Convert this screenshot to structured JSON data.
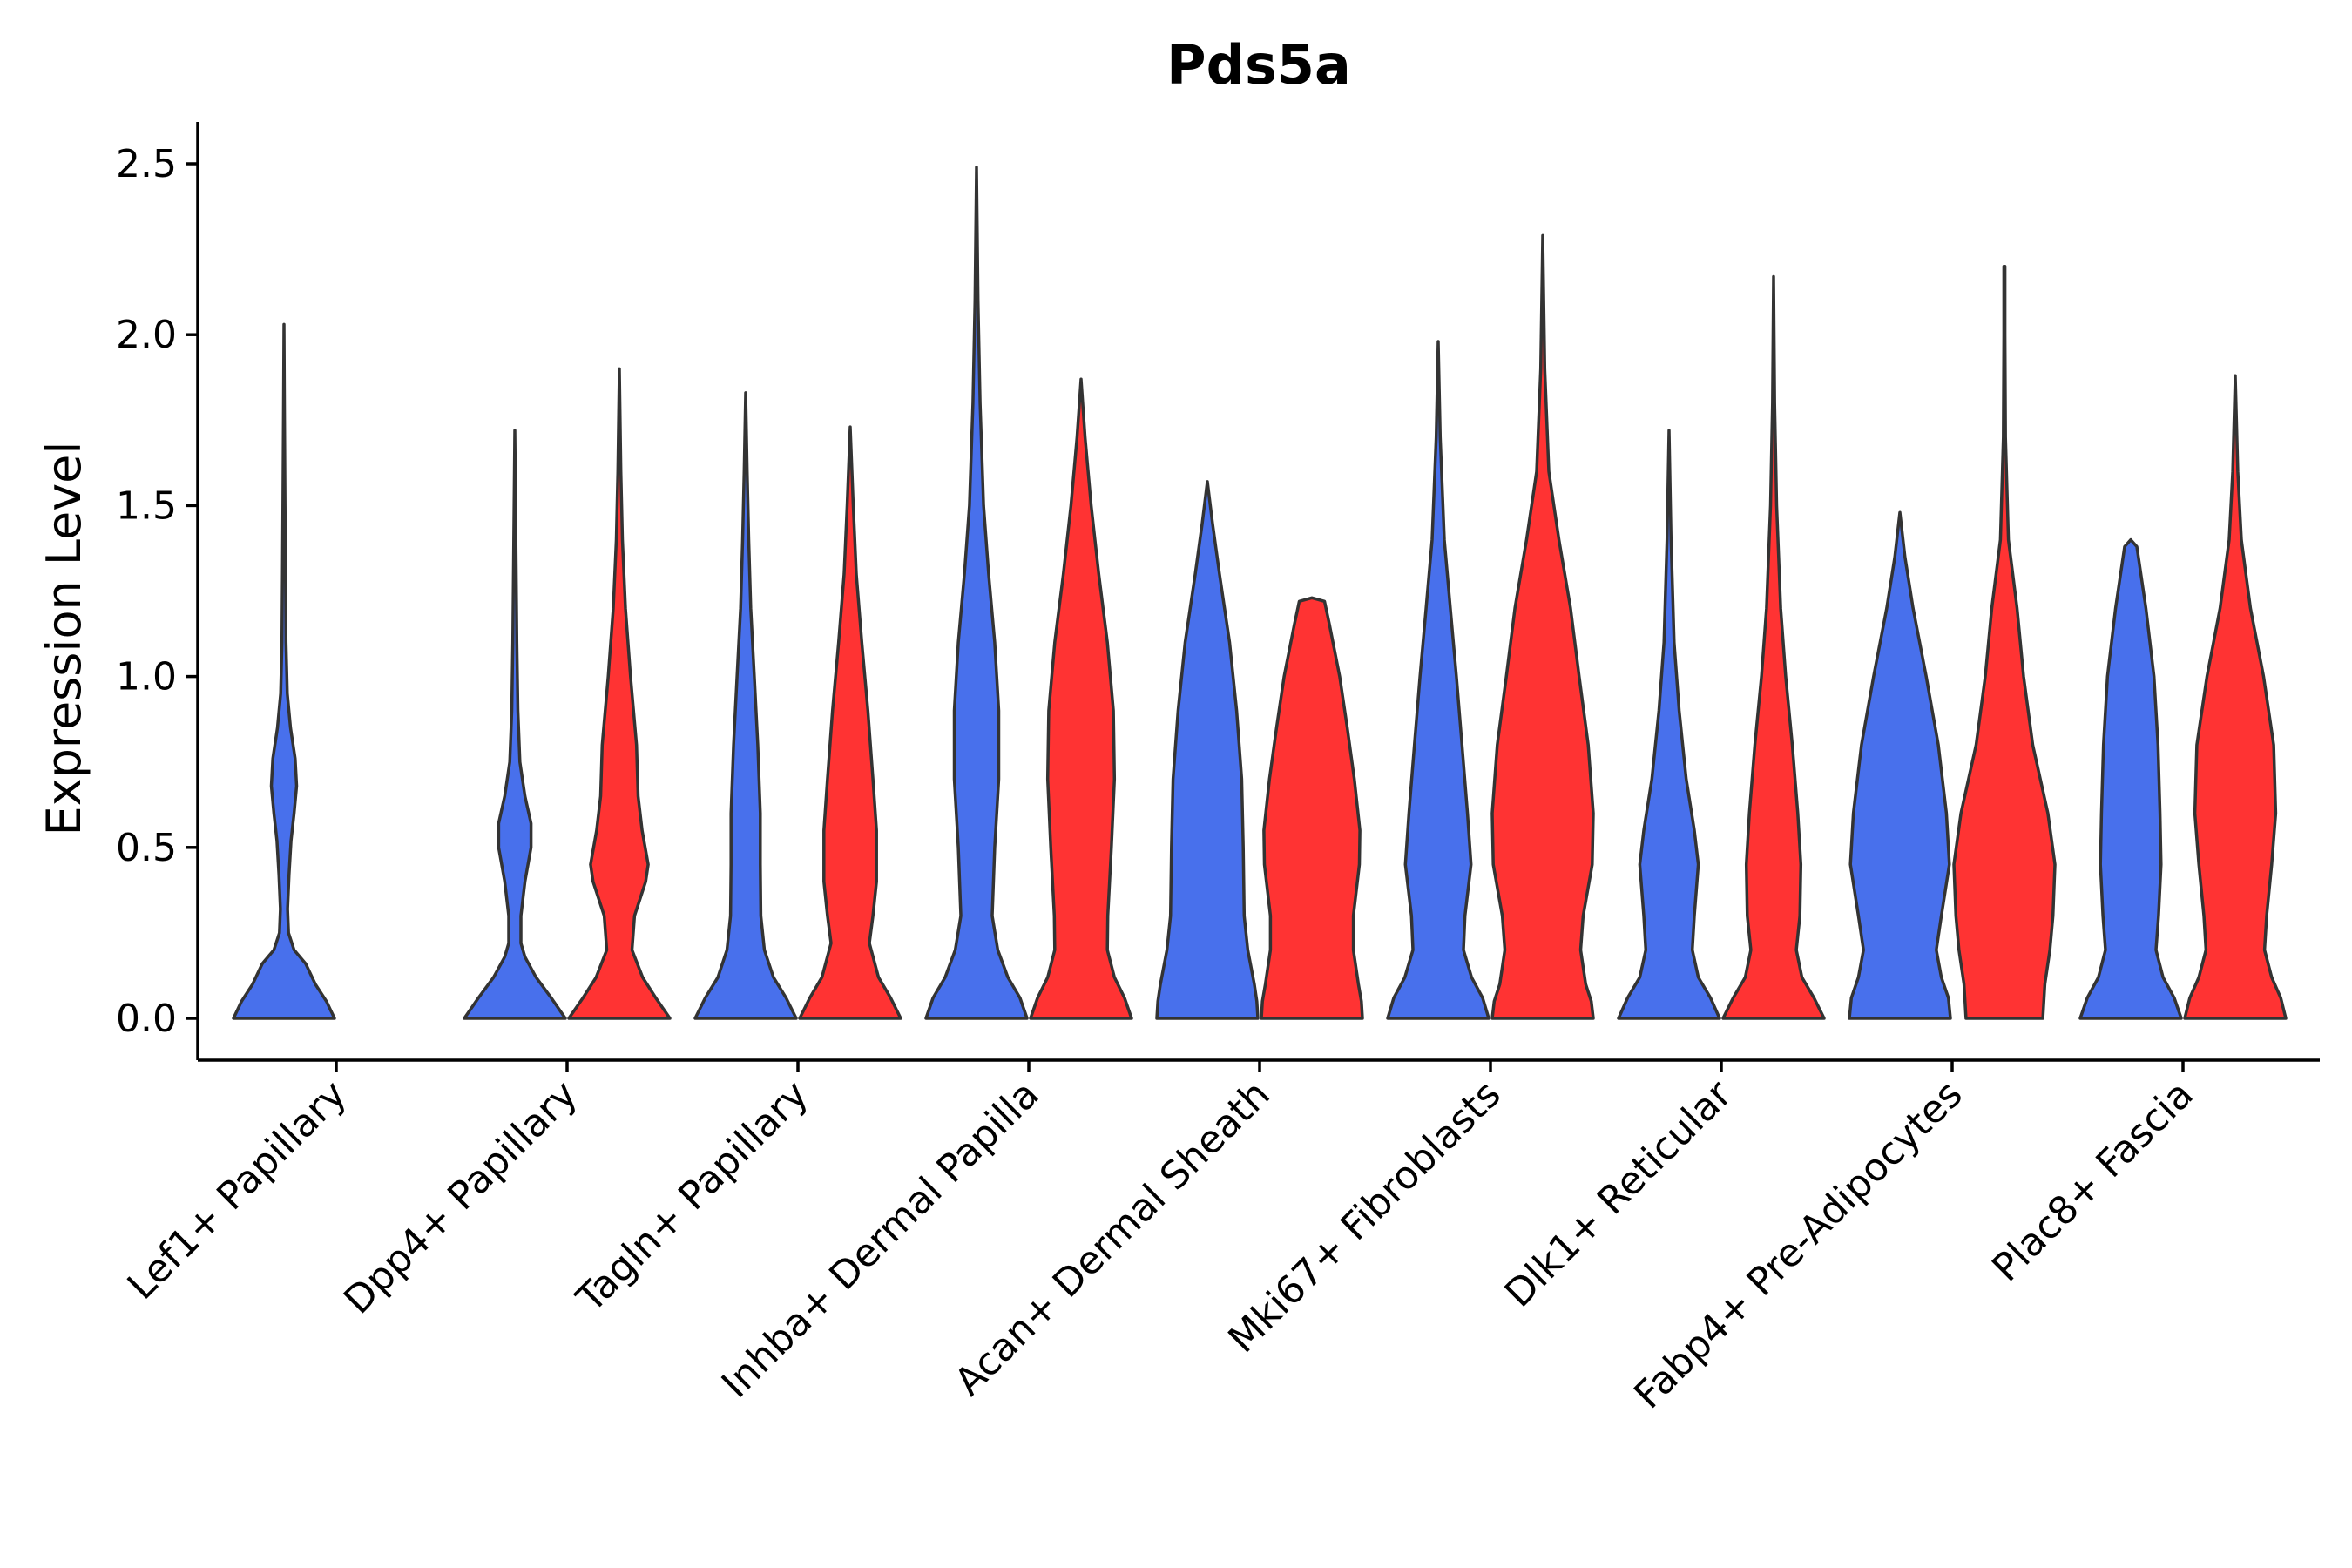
{
  "chart_data": {
    "type": "violin",
    "title": "Pds5a",
    "xlabel": "",
    "ylabel": "Expression Level",
    "ylim": [
      -0.12,
      2.6
    ],
    "yticks": [
      0.0,
      0.5,
      1.0,
      1.5,
      2.0,
      2.5
    ],
    "ytick_labels": [
      "0.0",
      "0.5",
      "1.0",
      "1.5",
      "2.0",
      "2.5"
    ],
    "legend": "none",
    "colors": {
      "group1": "#4870EC",
      "group2": "#FF3333",
      "outline": "#333333",
      "axis": "#000000"
    },
    "categories": [
      "Lef1+ Papillary",
      "Dpp4+ Papillary",
      "Tagln+ Papillary",
      "Inhba+ Dermal Papilla",
      "Acan+ Dermal Sheath",
      "Mki67+ Fibroblasts",
      "Dlk1+ Reticular",
      "Fabp4+ Pre-Adipocytes",
      "Plac8+ Fascia"
    ],
    "violins": [
      {
        "category": "Lef1+ Papillary",
        "group": "group1",
        "shape": [
          [
            0,
            1.0
          ],
          [
            0.05,
            0.84
          ],
          [
            0.1,
            0.62
          ],
          [
            0.16,
            0.43
          ],
          [
            0.2,
            0.2
          ],
          [
            0.25,
            0.09
          ],
          [
            0.32,
            0.07
          ],
          [
            0.42,
            0.1
          ],
          [
            0.52,
            0.14
          ],
          [
            0.6,
            0.2
          ],
          [
            0.68,
            0.25
          ],
          [
            0.76,
            0.22
          ],
          [
            0.85,
            0.13
          ],
          [
            0.95,
            0.065
          ],
          [
            1.1,
            0.04
          ],
          [
            1.3,
            0.03
          ],
          [
            1.5,
            0.02
          ],
          [
            1.75,
            0.01
          ],
          [
            2.03,
            0.0
          ]
        ]
      },
      {
        "category": "Dpp4+ Papillary",
        "group": "group1",
        "shape": [
          [
            0,
            1.0
          ],
          [
            0.06,
            0.72
          ],
          [
            0.12,
            0.42
          ],
          [
            0.18,
            0.2
          ],
          [
            0.22,
            0.12
          ],
          [
            0.3,
            0.12
          ],
          [
            0.4,
            0.2
          ],
          [
            0.5,
            0.32
          ],
          [
            0.57,
            0.32
          ],
          [
            0.65,
            0.2
          ],
          [
            0.75,
            0.1
          ],
          [
            0.9,
            0.06
          ],
          [
            1.1,
            0.04
          ],
          [
            1.4,
            0.02
          ],
          [
            1.72,
            0.0
          ]
        ]
      },
      {
        "category": "Dpp4+ Papillary",
        "group": "group2",
        "shape": [
          [
            0,
            1.0
          ],
          [
            0.06,
            0.72
          ],
          [
            0.12,
            0.46
          ],
          [
            0.2,
            0.25
          ],
          [
            0.3,
            0.3
          ],
          [
            0.4,
            0.52
          ],
          [
            0.45,
            0.57
          ],
          [
            0.55,
            0.45
          ],
          [
            0.65,
            0.37
          ],
          [
            0.8,
            0.34
          ],
          [
            1.0,
            0.22
          ],
          [
            1.2,
            0.12
          ],
          [
            1.4,
            0.06
          ],
          [
            1.6,
            0.03
          ],
          [
            1.9,
            0.0
          ]
        ]
      },
      {
        "category": "Tagln+ Papillary",
        "group": "group1",
        "shape": [
          [
            0,
            1.0
          ],
          [
            0.06,
            0.8
          ],
          [
            0.12,
            0.55
          ],
          [
            0.2,
            0.37
          ],
          [
            0.3,
            0.3
          ],
          [
            0.45,
            0.29
          ],
          [
            0.6,
            0.29
          ],
          [
            0.8,
            0.24
          ],
          [
            1.0,
            0.17
          ],
          [
            1.2,
            0.1
          ],
          [
            1.4,
            0.06
          ],
          [
            1.6,
            0.03
          ],
          [
            1.83,
            0.0
          ]
        ]
      },
      {
        "category": "Tagln+ Papillary",
        "group": "group2",
        "shape": [
          [
            0,
            1.0
          ],
          [
            0.06,
            0.8
          ],
          [
            0.12,
            0.56
          ],
          [
            0.22,
            0.38
          ],
          [
            0.3,
            0.45
          ],
          [
            0.4,
            0.52
          ],
          [
            0.55,
            0.52
          ],
          [
            0.7,
            0.45
          ],
          [
            0.9,
            0.35
          ],
          [
            1.1,
            0.23
          ],
          [
            1.3,
            0.12
          ],
          [
            1.5,
            0.06
          ],
          [
            1.73,
            0.0
          ]
        ]
      },
      {
        "category": "Inhba+ Dermal Papilla",
        "group": "group1",
        "shape": [
          [
            0,
            1.0
          ],
          [
            0.06,
            0.86
          ],
          [
            0.12,
            0.62
          ],
          [
            0.2,
            0.42
          ],
          [
            0.3,
            0.31
          ],
          [
            0.5,
            0.36
          ],
          [
            0.7,
            0.44
          ],
          [
            0.9,
            0.44
          ],
          [
            1.1,
            0.36
          ],
          [
            1.3,
            0.24
          ],
          [
            1.5,
            0.14
          ],
          [
            1.8,
            0.07
          ],
          [
            2.1,
            0.03
          ],
          [
            2.49,
            0.0
          ]
        ]
      },
      {
        "category": "Inhba+ Dermal Papilla",
        "group": "group2",
        "shape": [
          [
            0,
            1.0
          ],
          [
            0.06,
            0.86
          ],
          [
            0.12,
            0.66
          ],
          [
            0.2,
            0.52
          ],
          [
            0.3,
            0.53
          ],
          [
            0.5,
            0.6
          ],
          [
            0.7,
            0.66
          ],
          [
            0.9,
            0.64
          ],
          [
            1.1,
            0.52
          ],
          [
            1.3,
            0.35
          ],
          [
            1.5,
            0.2
          ],
          [
            1.7,
            0.08
          ],
          [
            1.87,
            0.0
          ]
        ]
      },
      {
        "category": "Acan+ Dermal Sheath",
        "group": "group1",
        "shape": [
          [
            0,
            1.0
          ],
          [
            0.05,
            0.98
          ],
          [
            0.1,
            0.93
          ],
          [
            0.2,
            0.8
          ],
          [
            0.3,
            0.73
          ],
          [
            0.5,
            0.71
          ],
          [
            0.7,
            0.68
          ],
          [
            0.9,
            0.58
          ],
          [
            1.1,
            0.44
          ],
          [
            1.3,
            0.24
          ],
          [
            1.45,
            0.1
          ],
          [
            1.57,
            0.0
          ]
        ]
      },
      {
        "category": "Acan+ Dermal Sheath",
        "group": "group2",
        "shape": [
          [
            0,
            1.0
          ],
          [
            0.05,
            0.98
          ],
          [
            0.1,
            0.92
          ],
          [
            0.2,
            0.82
          ],
          [
            0.3,
            0.82
          ],
          [
            0.45,
            0.94
          ],
          [
            0.55,
            0.95
          ],
          [
            0.7,
            0.84
          ],
          [
            0.85,
            0.7
          ],
          [
            1.0,
            0.55
          ],
          [
            1.15,
            0.35
          ],
          [
            1.22,
            0.25
          ],
          [
            1.23,
            0.0
          ]
        ]
      },
      {
        "category": "Mki67+ Fibroblasts",
        "group": "group1",
        "shape": [
          [
            0,
            1.0
          ],
          [
            0.06,
            0.88
          ],
          [
            0.12,
            0.66
          ],
          [
            0.2,
            0.5
          ],
          [
            0.3,
            0.53
          ],
          [
            0.45,
            0.65
          ],
          [
            0.6,
            0.58
          ],
          [
            0.8,
            0.47
          ],
          [
            1.0,
            0.36
          ],
          [
            1.2,
            0.24
          ],
          [
            1.4,
            0.12
          ],
          [
            1.7,
            0.04
          ],
          [
            1.98,
            0.0
          ]
        ]
      },
      {
        "category": "Mki67+ Fibroblasts",
        "group": "group2",
        "shape": [
          [
            0,
            1.0
          ],
          [
            0.05,
            0.96
          ],
          [
            0.1,
            0.85
          ],
          [
            0.2,
            0.75
          ],
          [
            0.3,
            0.8
          ],
          [
            0.45,
            0.98
          ],
          [
            0.6,
            1.0
          ],
          [
            0.8,
            0.9
          ],
          [
            1.0,
            0.72
          ],
          [
            1.2,
            0.55
          ],
          [
            1.4,
            0.32
          ],
          [
            1.6,
            0.12
          ],
          [
            1.9,
            0.04
          ],
          [
            2.29,
            0.0
          ]
        ]
      },
      {
        "category": "Dlk1+ Reticular",
        "group": "group1",
        "shape": [
          [
            0,
            1.0
          ],
          [
            0.06,
            0.82
          ],
          [
            0.12,
            0.58
          ],
          [
            0.2,
            0.46
          ],
          [
            0.3,
            0.5
          ],
          [
            0.45,
            0.58
          ],
          [
            0.55,
            0.5
          ],
          [
            0.7,
            0.34
          ],
          [
            0.9,
            0.2
          ],
          [
            1.1,
            0.1
          ],
          [
            1.4,
            0.04
          ],
          [
            1.72,
            0.0
          ]
        ]
      },
      {
        "category": "Dlk1+ Reticular",
        "group": "group2",
        "shape": [
          [
            0,
            1.0
          ],
          [
            0.06,
            0.8
          ],
          [
            0.12,
            0.56
          ],
          [
            0.2,
            0.45
          ],
          [
            0.3,
            0.52
          ],
          [
            0.45,
            0.54
          ],
          [
            0.6,
            0.48
          ],
          [
            0.8,
            0.37
          ],
          [
            1.0,
            0.24
          ],
          [
            1.2,
            0.14
          ],
          [
            1.5,
            0.06
          ],
          [
            1.8,
            0.02
          ],
          [
            2.17,
            0.0
          ]
        ]
      },
      {
        "category": "Fabp4+ Pre-Adipocytes",
        "group": "group1",
        "shape": [
          [
            0,
            1.0
          ],
          [
            0.06,
            0.96
          ],
          [
            0.12,
            0.82
          ],
          [
            0.2,
            0.72
          ],
          [
            0.3,
            0.82
          ],
          [
            0.45,
            0.98
          ],
          [
            0.6,
            0.92
          ],
          [
            0.8,
            0.76
          ],
          [
            1.0,
            0.52
          ],
          [
            1.2,
            0.26
          ],
          [
            1.35,
            0.1
          ],
          [
            1.48,
            0.0
          ]
        ]
      },
      {
        "category": "Fabp4+ Pre-Adipocytes",
        "group": "group2",
        "shape": [
          [
            0,
            0.76
          ],
          [
            0.1,
            0.8
          ],
          [
            0.2,
            0.9
          ],
          [
            0.3,
            0.96
          ],
          [
            0.45,
            1.0
          ],
          [
            0.6,
            0.86
          ],
          [
            0.8,
            0.56
          ],
          [
            1.0,
            0.38
          ],
          [
            1.2,
            0.25
          ],
          [
            1.4,
            0.08
          ],
          [
            1.7,
            0.02
          ],
          [
            2.0,
            0.01
          ],
          [
            2.2,
            0.01
          ],
          [
            2.2,
            0.0
          ]
        ]
      },
      {
        "category": "Plac8+ Fascia",
        "group": "group1",
        "shape": [
          [
            0,
            1.0
          ],
          [
            0.06,
            0.86
          ],
          [
            0.12,
            0.64
          ],
          [
            0.2,
            0.5
          ],
          [
            0.3,
            0.55
          ],
          [
            0.45,
            0.6
          ],
          [
            0.6,
            0.58
          ],
          [
            0.8,
            0.54
          ],
          [
            1.0,
            0.46
          ],
          [
            1.2,
            0.3
          ],
          [
            1.38,
            0.12
          ],
          [
            1.4,
            0.0
          ]
        ]
      },
      {
        "category": "Plac8+ Fascia",
        "group": "group2",
        "shape": [
          [
            0,
            1.0
          ],
          [
            0.06,
            0.9
          ],
          [
            0.12,
            0.72
          ],
          [
            0.2,
            0.58
          ],
          [
            0.3,
            0.62
          ],
          [
            0.45,
            0.72
          ],
          [
            0.6,
            0.8
          ],
          [
            0.8,
            0.76
          ],
          [
            1.0,
            0.56
          ],
          [
            1.2,
            0.3
          ],
          [
            1.4,
            0.12
          ],
          [
            1.6,
            0.05
          ],
          [
            1.88,
            0.0
          ]
        ]
      }
    ]
  }
}
